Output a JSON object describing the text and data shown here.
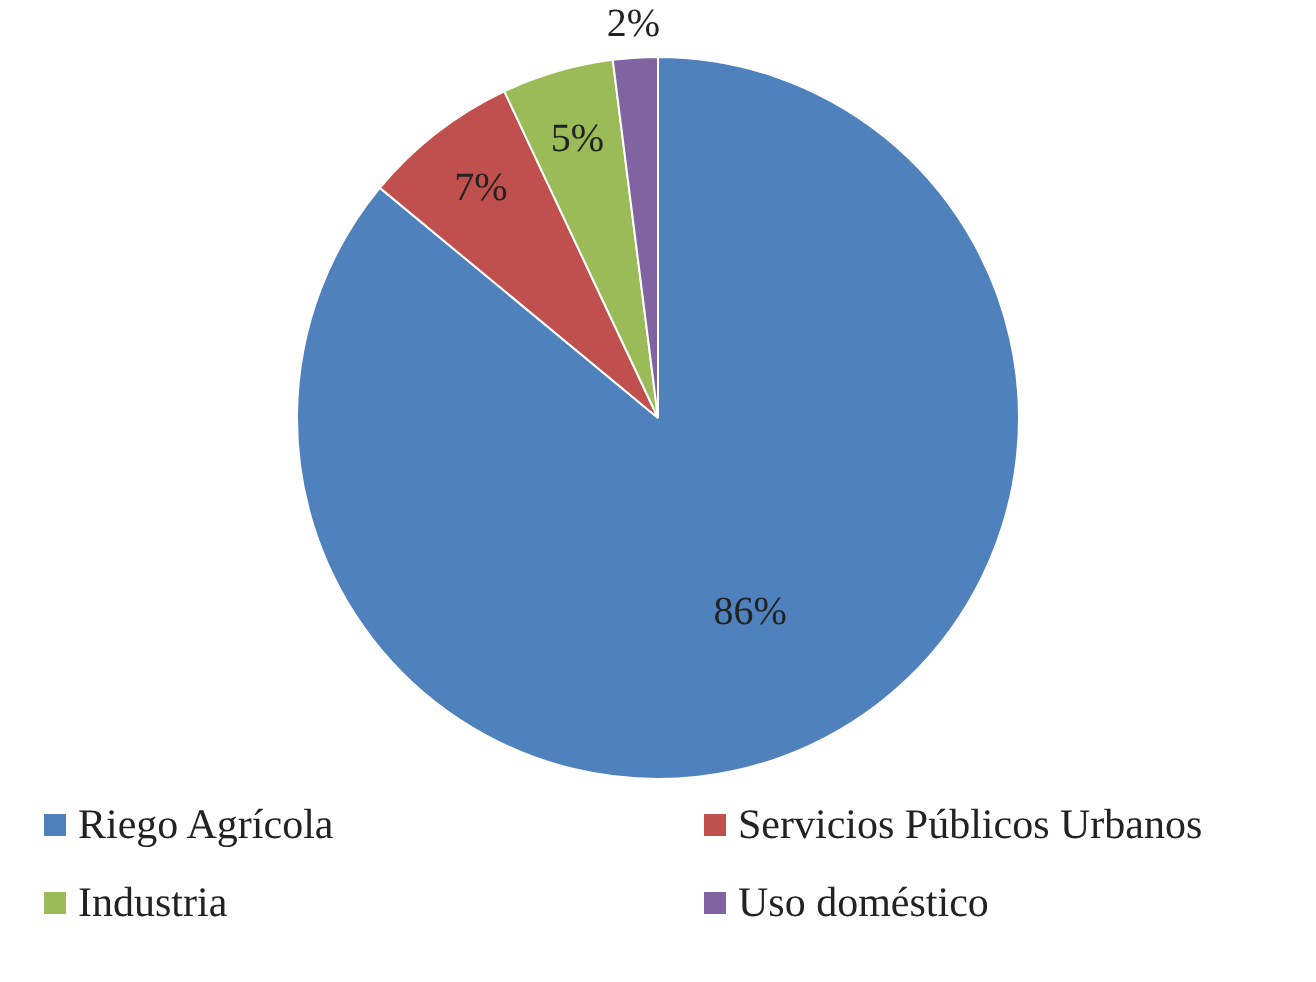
{
  "chart_data": {
    "type": "pie",
    "categories": [
      "Riego Agrícola",
      "Servicios Públicos Urbanos",
      "Industria",
      "Uso doméstico"
    ],
    "values": [
      86,
      7,
      5,
      2
    ],
    "colors": [
      "#4f81bd",
      "#c0504d",
      "#9bbb59",
      "#8064a2"
    ],
    "value_labels": [
      "86%",
      "7%",
      "5%",
      "2%"
    ],
    "legend": "bottom"
  }
}
